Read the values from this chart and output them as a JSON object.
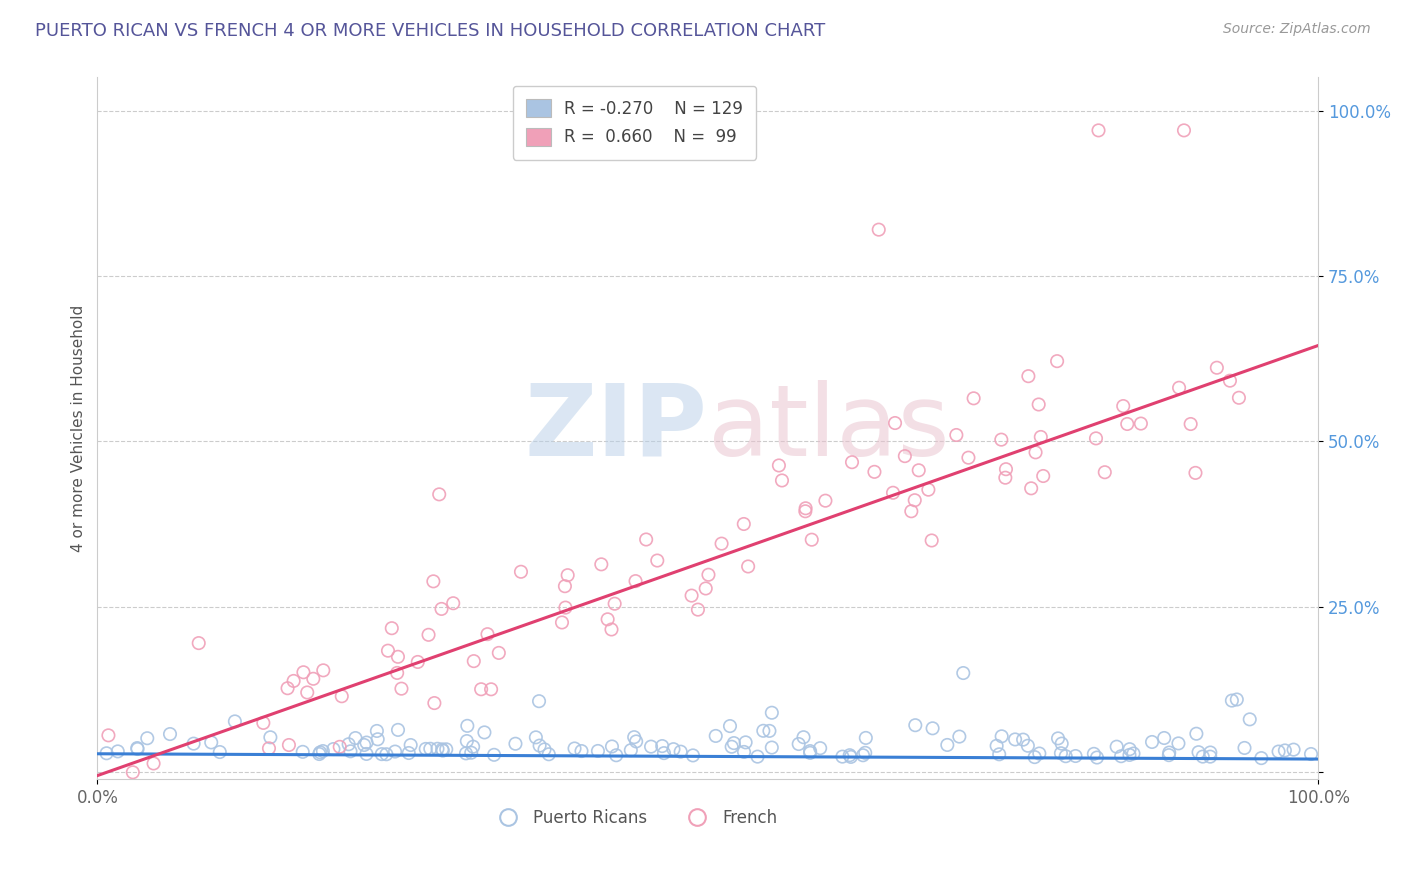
{
  "title": "PUERTO RICAN VS FRENCH 4 OR MORE VEHICLES IN HOUSEHOLD CORRELATION CHART",
  "source": "Source: ZipAtlas.com",
  "ylabel": "4 or more Vehicles in Household",
  "xlim": [
    0.0,
    1.0
  ],
  "ylim": [
    0.0,
    1.0
  ],
  "yticks": [
    0.0,
    0.25,
    0.5,
    0.75,
    1.0
  ],
  "ytick_labels": [
    "",
    "25.0%",
    "50.0%",
    "75.0%",
    "100.0%"
  ],
  "blue_color": "#aac4e2",
  "pink_color": "#f0a0b8",
  "blue_line_color": "#3a7fd5",
  "pink_line_color": "#e04070",
  "blue_R": -0.27,
  "blue_N": 129,
  "pink_R": 0.66,
  "pink_N": 99,
  "blue_slope": -0.008,
  "blue_intercept": 0.028,
  "pink_slope": 0.65,
  "pink_intercept": -0.005,
  "title_color": "#555599",
  "source_color": "#999999",
  "tick_label_color_right": "#5599dd",
  "background_color": "#ffffff",
  "grid_color": "#cccccc"
}
